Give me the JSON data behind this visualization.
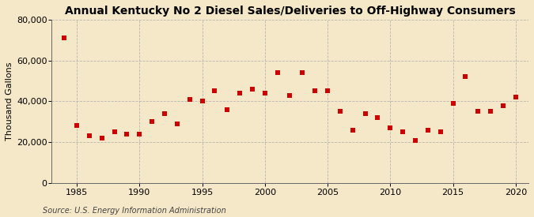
{
  "title": "Annual Kentucky No 2 Diesel Sales/Deliveries to Off-Highway Consumers",
  "ylabel": "Thousand Gallons",
  "source": "Source: U.S. Energy Information Administration",
  "background_color": "#f5e8c8",
  "plot_background_color": "#f5e8c8",
  "marker_color": "#cc0000",
  "marker_size": 4,
  "xlim": [
    1983,
    2021
  ],
  "ylim": [
    0,
    80000
  ],
  "yticks": [
    0,
    20000,
    40000,
    60000,
    80000
  ],
  "xticks": [
    1985,
    1990,
    1995,
    2000,
    2005,
    2010,
    2015,
    2020
  ],
  "years": [
    1984,
    1985,
    1986,
    1987,
    1988,
    1989,
    1990,
    1991,
    1992,
    1993,
    1994,
    1995,
    1996,
    1997,
    1998,
    1999,
    2000,
    2001,
    2002,
    2003,
    2004,
    2005,
    2006,
    2007,
    2008,
    2009,
    2010,
    2011,
    2012,
    2013,
    2014,
    2015,
    2016,
    2017,
    2018,
    2019,
    2020
  ],
  "values": [
    71000,
    28000,
    23000,
    22000,
    25000,
    24000,
    24000,
    30000,
    34000,
    29000,
    41000,
    40000,
    45000,
    36000,
    44000,
    46000,
    44000,
    54000,
    43000,
    54000,
    45000,
    45000,
    35000,
    26000,
    34000,
    32000,
    27000,
    25000,
    21000,
    26000,
    25000,
    39000,
    52000,
    35000,
    35000,
    38000,
    42000
  ],
  "grid_color": "#aaaaaa",
  "grid_style": "--",
  "grid_alpha": 0.8,
  "title_fontsize": 10,
  "label_fontsize": 8,
  "tick_fontsize": 8,
  "source_fontsize": 7
}
